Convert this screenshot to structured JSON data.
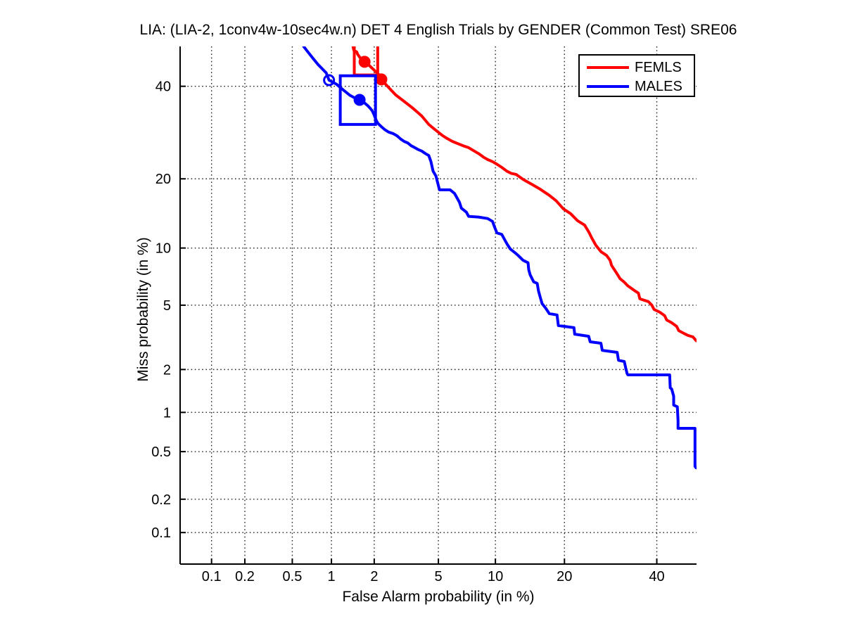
{
  "chart_data": {
    "type": "line",
    "subtype": "DET-curve",
    "scale": "probit-probit",
    "title": "LIA: (LIA-2, 1conv4w-10sec4w.n) DET 4 English Trials by GENDER (Common Test) SRE06",
    "xlabel": "False Alarm probability (in %)",
    "ylabel": "Miss probability (in %)",
    "xlim": [
      0.05,
      50
    ],
    "ylim": [
      0.05,
      50
    ],
    "x_ticks": [
      0.1,
      0.2,
      0.5,
      1,
      2,
      5,
      10,
      20,
      40
    ],
    "x_tick_labels": [
      "0.1",
      "0.2",
      "0.5",
      "1",
      "2",
      "5",
      "10",
      "20",
      "40"
    ],
    "y_ticks": [
      40,
      20,
      10,
      5,
      2,
      1,
      0.5,
      0.2,
      0.1
    ],
    "y_tick_labels": [
      "40",
      "20",
      "10",
      "5",
      "2",
      "1",
      "0.5",
      "0.2",
      "0.1"
    ],
    "grid": "dotted",
    "legend_position": "top-right",
    "axis_color": "#000000",
    "grid_color": "#000000",
    "series": [
      {
        "name": "FEMLS",
        "color": "#ff0000",
        "line_width": 4,
        "points": [
          [
            1.43,
            50
          ],
          [
            1.45,
            49.0
          ],
          [
            1.52,
            48.6
          ],
          [
            1.54,
            48.0
          ],
          [
            1.62,
            46.9
          ],
          [
            1.72,
            46.1
          ],
          [
            1.85,
            45.2
          ],
          [
            2.0,
            44.0
          ],
          [
            2.16,
            42.8
          ],
          [
            2.23,
            41.7
          ],
          [
            2.38,
            40.5
          ],
          [
            2.49,
            39.7
          ],
          [
            2.76,
            37.9
          ],
          [
            3.06,
            36.6
          ],
          [
            3.49,
            34.9
          ],
          [
            3.74,
            33.9
          ],
          [
            4.0,
            32.9
          ],
          [
            4.4,
            31.0
          ],
          [
            4.66,
            30.2
          ],
          [
            4.98,
            29.3
          ],
          [
            5.3,
            28.5
          ],
          [
            5.61,
            27.9
          ],
          [
            5.98,
            27.3
          ],
          [
            6.54,
            26.7
          ],
          [
            6.94,
            26.3
          ],
          [
            7.32,
            26.0
          ],
          [
            7.76,
            25.4
          ],
          [
            8.24,
            24.8
          ],
          [
            8.72,
            24.1
          ],
          [
            9.16,
            23.6
          ],
          [
            9.68,
            23.2
          ],
          [
            10.17,
            22.7
          ],
          [
            10.73,
            22.1
          ],
          [
            11.33,
            21.4
          ],
          [
            11.86,
            21.0
          ],
          [
            12.5,
            20.8
          ],
          [
            13.45,
            19.9
          ],
          [
            14.75,
            19.0
          ],
          [
            15.82,
            18.3
          ],
          [
            17.4,
            17.2
          ],
          [
            18.58,
            16.3
          ],
          [
            19.81,
            15.1
          ],
          [
            21.1,
            14.4
          ],
          [
            22.42,
            13.4
          ],
          [
            23.79,
            12.8
          ],
          [
            24.63,
            11.9
          ],
          [
            25.2,
            11.2
          ],
          [
            26.08,
            10.3
          ],
          [
            27.12,
            9.6
          ],
          [
            28.32,
            9.2
          ],
          [
            29.09,
            8.7
          ],
          [
            29.4,
            8.2
          ],
          [
            30.5,
            7.5
          ],
          [
            31.29,
            7.0
          ],
          [
            32.26,
            6.7
          ],
          [
            33.07,
            6.4
          ],
          [
            34.55,
            6.05
          ],
          [
            35.56,
            5.84
          ],
          [
            35.89,
            5.43
          ],
          [
            37.94,
            5.24
          ],
          [
            38.8,
            5.0
          ],
          [
            39.32,
            4.73
          ],
          [
            40.71,
            4.56
          ],
          [
            41.94,
            4.35
          ],
          [
            42.47,
            4.1
          ],
          [
            43.71,
            3.95
          ],
          [
            44.96,
            3.76
          ],
          [
            45.49,
            3.54
          ],
          [
            46.75,
            3.41
          ],
          [
            47.83,
            3.31
          ],
          [
            49.08,
            3.24
          ],
          [
            49.9,
            3.07
          ]
        ],
        "markers": [
          {
            "fa": 1.72,
            "miss": 46.1,
            "style": "filled"
          },
          {
            "fa": 2.23,
            "miss": 41.7,
            "style": "filled"
          }
        ],
        "box": {
          "fa": [
            1.46,
            2.11
          ],
          "miss": [
            42.8,
            55
          ]
        }
      },
      {
        "name": "MALES",
        "color": "#0000ff",
        "line_width": 4,
        "points": [
          [
            0.615,
            50
          ],
          [
            0.66,
            48.7
          ],
          [
            0.73,
            46.9
          ],
          [
            0.79,
            45.5
          ],
          [
            0.84,
            44.6
          ],
          [
            0.915,
            43.3
          ],
          [
            0.96,
            41.5
          ],
          [
            1.09,
            40.5
          ],
          [
            1.22,
            39.1
          ],
          [
            1.36,
            37.8
          ],
          [
            1.52,
            36.9
          ],
          [
            1.59,
            36.7
          ],
          [
            1.7,
            36.1
          ],
          [
            1.8,
            35.4
          ],
          [
            1.88,
            34.7
          ],
          [
            1.94,
            34.1
          ],
          [
            1.99,
            33.3
          ],
          [
            2.03,
            32.5
          ],
          [
            2.07,
            31.8
          ],
          [
            2.12,
            31.2
          ],
          [
            2.23,
            30.5
          ],
          [
            2.36,
            29.8
          ],
          [
            2.49,
            29.3
          ],
          [
            2.65,
            29.0
          ],
          [
            2.82,
            28.5
          ],
          [
            2.97,
            27.8
          ],
          [
            3.12,
            27.3
          ],
          [
            3.28,
            27.0
          ],
          [
            3.45,
            26.4
          ],
          [
            3.63,
            26.0
          ],
          [
            3.81,
            25.6
          ],
          [
            4.0,
            25.3
          ],
          [
            4.2,
            24.8
          ],
          [
            4.4,
            24.4
          ],
          [
            4.53,
            23.2
          ],
          [
            4.66,
            21.4
          ],
          [
            4.84,
            20.5
          ],
          [
            4.98,
            19.0
          ],
          [
            5.07,
            18.1
          ],
          [
            5.82,
            18.1
          ],
          [
            6.15,
            17.5
          ],
          [
            6.54,
            16.1
          ],
          [
            6.7,
            15.2
          ],
          [
            7.13,
            14.6
          ],
          [
            7.32,
            14.0
          ],
          [
            8.24,
            13.9
          ],
          [
            9.16,
            13.7
          ],
          [
            9.68,
            13.3
          ],
          [
            9.92,
            12.5
          ],
          [
            10.17,
            11.8
          ],
          [
            10.73,
            11.6
          ],
          [
            11.16,
            10.8
          ],
          [
            11.4,
            10.4
          ],
          [
            11.76,
            9.9
          ],
          [
            12.5,
            9.4
          ],
          [
            12.78,
            9.2
          ],
          [
            13.45,
            8.7
          ],
          [
            14.15,
            8.45
          ],
          [
            14.25,
            7.78
          ],
          [
            14.45,
            7.33
          ],
          [
            14.97,
            6.73
          ],
          [
            15.5,
            6.6
          ],
          [
            15.7,
            6.0
          ],
          [
            16.0,
            5.48
          ],
          [
            16.26,
            5.1
          ],
          [
            16.8,
            4.82
          ],
          [
            17.4,
            4.47
          ],
          [
            18.7,
            4.39
          ],
          [
            18.93,
            3.8
          ],
          [
            21.74,
            3.69
          ],
          [
            21.88,
            3.37
          ],
          [
            24.6,
            3.27
          ],
          [
            24.9,
            3.02
          ],
          [
            27.12,
            2.96
          ],
          [
            27.4,
            2.67
          ],
          [
            30.65,
            2.59
          ],
          [
            30.96,
            2.3
          ],
          [
            32.26,
            2.26
          ],
          [
            32.58,
            2.05
          ],
          [
            32.9,
            1.88
          ],
          [
            33.07,
            1.84
          ],
          [
            43.2,
            1.84
          ],
          [
            43.35,
            1.5
          ],
          [
            43.71,
            1.47
          ],
          [
            44.2,
            1.31
          ],
          [
            44.2,
            1.13
          ],
          [
            45.13,
            1.1
          ],
          [
            45.3,
            0.87
          ],
          [
            45.3,
            0.76
          ],
          [
            49.6,
            0.76
          ],
          [
            49.6,
            0.38
          ],
          [
            49.9,
            0.37
          ]
        ],
        "markers": [
          {
            "fa": 0.96,
            "miss": 41.5,
            "style": "open"
          },
          {
            "fa": 1.59,
            "miss": 36.7,
            "style": "filled"
          }
        ],
        "box": {
          "fa": [
            1.16,
            2.04
          ],
          "miss": [
            31.0,
            42.6
          ]
        }
      }
    ]
  },
  "legend": {
    "entries": [
      {
        "label": "FEMLS",
        "color": "#ff0000"
      },
      {
        "label": "MALES",
        "color": "#0000ff"
      }
    ]
  }
}
